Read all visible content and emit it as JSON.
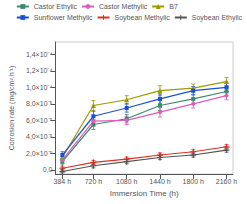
{
  "chart_data": {
    "type": "line",
    "xlabel": "Immersion Time (h)",
    "ylabel": "Corrosion rate (mg/cm².h⁻¹)",
    "x": [
      384,
      720,
      1080,
      1440,
      1800,
      2160
    ],
    "xlim": [
      310,
      2230
    ],
    "xticks": [
      {
        "value": 384,
        "label": "384 h"
      },
      {
        "value": 720,
        "label": "720 h"
      },
      {
        "value": 1080,
        "label": "1080 h"
      },
      {
        "value": 1440,
        "label": "1440 h"
      },
      {
        "value": 1800,
        "label": "1800 h"
      },
      {
        "value": 2160,
        "label": "2160 h"
      }
    ],
    "ylim": [
      -5e-06,
      0.000155
    ],
    "yticks": [
      {
        "value": 0,
        "label": "0,0"
      },
      {
        "value": 2e-05,
        "label": "2,0×10⁻⁵"
      },
      {
        "value": 4e-05,
        "label": "4,0×10⁻⁵"
      },
      {
        "value": 6e-05,
        "label": "6,0×10⁻⁵"
      },
      {
        "value": 8e-05,
        "label": "8,0×10⁻⁵"
      },
      {
        "value": 0.0001,
        "label": "1,0×10⁻⁴"
      },
      {
        "value": 0.00012,
        "label": "1,2×10⁻⁴"
      },
      {
        "value": 0.00014,
        "label": "1,4×10⁻⁴"
      }
    ],
    "grid": false,
    "legend": "upper right",
    "series": [
      {
        "name": "Castor Ethylic",
        "color": "#3a8a6e",
        "marker": "square",
        "values": [
          1e-05,
          5.5e-05,
          6.2e-05,
          7.8e-05,
          8.6e-05,
          9.5e-05
        ],
        "error_bars": [
          4e-06,
          6e-06,
          5e-06,
          6e-06,
          5e-06,
          5e-06
        ]
      },
      {
        "name": "Castor Methylic",
        "color": "#e05cb8",
        "marker": "circle",
        "values": [
          1.2e-05,
          5.9e-05,
          6e-05,
          7e-05,
          8e-05,
          9e-05
        ],
        "error_bars": [
          4e-06,
          6e-06,
          5e-06,
          6e-06,
          5e-06,
          5e-06
        ]
      },
      {
        "name": "B7",
        "color": "#9a9a00",
        "marker": "triangle",
        "values": [
          1.5e-05,
          7.8e-05,
          8.5e-05,
          9.6e-05,
          9.9e-05,
          0.000107
        ],
        "error_bars": [
          4e-06,
          6e-06,
          5e-06,
          6e-06,
          5e-06,
          5e-06
        ]
      },
      {
        "name": "Sunflower Methylic",
        "color": "#1a4fd6",
        "marker": "square",
        "values": [
          1.8e-05,
          6.5e-05,
          7.5e-05,
          8.6e-05,
          9.6e-05,
          0.0001
        ],
        "error_bars": [
          4e-06,
          6e-06,
          5e-06,
          6e-06,
          5e-06,
          5e-06
        ]
      },
      {
        "name": "Soybean Methylic",
        "color": "#e03020",
        "marker": "plus",
        "values": [
          2e-06,
          9e-06,
          1.3e-05,
          1.8e-05,
          2.2e-05,
          2.8e-05
        ],
        "error_bars": [
          1.5e-06,
          2.5e-06,
          2.5e-06,
          2.5e-06,
          2.5e-06,
          2.5e-06
        ]
      },
      {
        "name": "Soybean Ethylic",
        "color": "#555555",
        "marker": "plus",
        "values": [
          -2e-06,
          5e-06,
          1e-05,
          1.5e-05,
          1.8e-05,
          2.4e-05
        ],
        "error_bars": [
          1.5e-06,
          2.5e-06,
          2.5e-06,
          2.5e-06,
          2.5e-06,
          2.5e-06
        ]
      }
    ]
  }
}
